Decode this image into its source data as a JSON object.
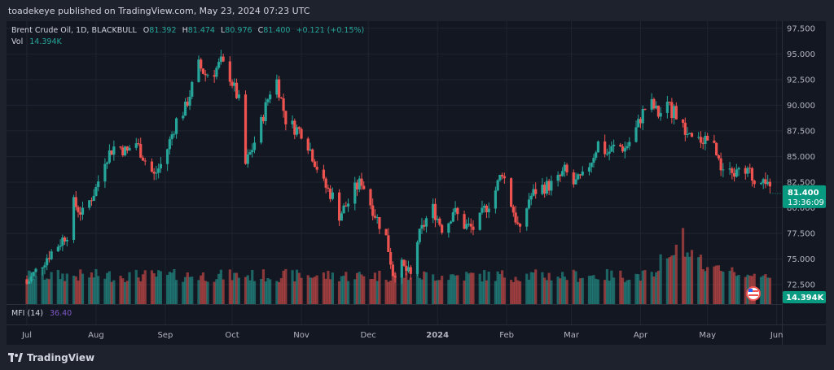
{
  "header": {
    "published": "toadekeye published on TradingView.com, May 23, 2024 07:23 UTC"
  },
  "legend": {
    "symbol": "Brent Crude Oil, 1D, BLACKBULL",
    "o_label": "O",
    "o_value": "81.392",
    "h_label": "H",
    "h_value": "81.474",
    "l_label": "L",
    "l_value": "80.976",
    "c_label": "C",
    "c_value": "81.400",
    "change": "+0.121 (+0.15%)",
    "vol_label": "Vol",
    "vol_value": "14.394K"
  },
  "indicator": {
    "label": "MFI (14)",
    "value": "36.40"
  },
  "price_badge": {
    "price": "81.400",
    "countdown": "13:36:09"
  },
  "volume_badge": "14.394K",
  "brand": "TradingView",
  "colors": {
    "up": "#26a69a",
    "down": "#ef5350",
    "bg": "#131722",
    "grid": "#1f2430",
    "badge": "#089981",
    "mfi": "#7e57c2"
  },
  "chart_data": {
    "type": "candlestick",
    "title": "Brent Crude Oil, 1D, BLACKBULL",
    "ylim": [
      70.6,
      98.2
    ],
    "y_ticks": [
      "97.500",
      "95.000",
      "92.500",
      "90.000",
      "87.500",
      "85.000",
      "82.500",
      "80.000",
      "77.500",
      "75.000",
      "72.500"
    ],
    "x_ticks": [
      "Jul",
      "Aug",
      "Sep",
      "Oct",
      "Nov",
      "Dec",
      "2024",
      "Feb",
      "Mar",
      "Apr",
      "May",
      "Jun"
    ],
    "x_tick_days": [
      0,
      31,
      62,
      92,
      123,
      153,
      184,
      215,
      244,
      275,
      305,
      336
    ],
    "start_date": "2023-06-26",
    "closes": [
      [
        0,
        72.6
      ],
      [
        4,
        73.8
      ],
      [
        9,
        75.2
      ],
      [
        14,
        76.4
      ],
      [
        18,
        77.5
      ],
      [
        21,
        80.4
      ],
      [
        25,
        79.4
      ],
      [
        31,
        81.9
      ],
      [
        35,
        84.8
      ],
      [
        40,
        86.2
      ],
      [
        45,
        85.4
      ],
      [
        48,
        86.8
      ],
      [
        53,
        84.6
      ],
      [
        57,
        83.1
      ],
      [
        60,
        84.2
      ],
      [
        63,
        85.8
      ],
      [
        67,
        88.5
      ],
      [
        71,
        89.7
      ],
      [
        74,
        91.8
      ],
      [
        77,
        93.9
      ],
      [
        80,
        93.0
      ],
      [
        84,
        93.3
      ],
      [
        87,
        94.2
      ],
      [
        91,
        92.8
      ],
      [
        95,
        90.4
      ],
      [
        98,
        84.2
      ],
      [
        101,
        85.8
      ],
      [
        105,
        88.3
      ],
      [
        109,
        91.4
      ],
      [
        112,
        92.4
      ],
      [
        116,
        88.6
      ],
      [
        120,
        87.8
      ],
      [
        124,
        87.3
      ],
      [
        128,
        85.1
      ],
      [
        133,
        82.3
      ],
      [
        137,
        81.1
      ],
      [
        140,
        79.3
      ],
      [
        144,
        80.5
      ],
      [
        147,
        81.8
      ],
      [
        150,
        82.6
      ],
      [
        153,
        80.9
      ],
      [
        157,
        78.9
      ],
      [
        161,
        77.1
      ],
      [
        164,
        73.7
      ],
      [
        168,
        74.3
      ],
      [
        172,
        73.3
      ],
      [
        175,
        76.8
      ],
      [
        179,
        78.9
      ],
      [
        182,
        79.9
      ],
      [
        187,
        77.6
      ],
      [
        191,
        79.8
      ],
      [
        196,
        78.3
      ],
      [
        201,
        77.9
      ],
      [
        205,
        79.8
      ],
      [
        209,
        81.1
      ],
      [
        213,
        83.6
      ],
      [
        217,
        80.4
      ],
      [
        221,
        77.5
      ],
      [
        225,
        80.9
      ],
      [
        229,
        81.9
      ],
      [
        233,
        82.1
      ],
      [
        237,
        82.4
      ],
      [
        241,
        83.6
      ],
      [
        245,
        82.3
      ],
      [
        249,
        82.9
      ],
      [
        253,
        84.7
      ],
      [
        256,
        86.3
      ],
      [
        260,
        85.3
      ],
      [
        264,
        86.1
      ],
      [
        268,
        85.8
      ],
      [
        272,
        87.1
      ],
      [
        276,
        89.3
      ],
      [
        279,
        90.4
      ],
      [
        283,
        89.1
      ],
      [
        287,
        89.8
      ],
      [
        291,
        89.1
      ],
      [
        295,
        87.3
      ],
      [
        299,
        86.3
      ],
      [
        303,
        86.8
      ],
      [
        306,
        87.3
      ],
      [
        310,
        84.2
      ],
      [
        314,
        83.3
      ],
      [
        317,
        83.4
      ],
      [
        321,
        83.2
      ],
      [
        324,
        83.4
      ],
      [
        327,
        82.1
      ],
      [
        330,
        83.4
      ],
      [
        333,
        81.4
      ]
    ],
    "volume_ylim": [
      0,
      100
    ],
    "volume_notable": [
      [
        286,
        64
      ],
      [
        290,
        74
      ],
      [
        293,
        95
      ],
      [
        297,
        71
      ],
      [
        301,
        62
      ],
      [
        305,
        48
      ],
      [
        309,
        58
      ],
      [
        312,
        52
      ],
      [
        316,
        50
      ],
      [
        320,
        42
      ],
      [
        325,
        45
      ],
      [
        330,
        40
      ]
    ]
  }
}
